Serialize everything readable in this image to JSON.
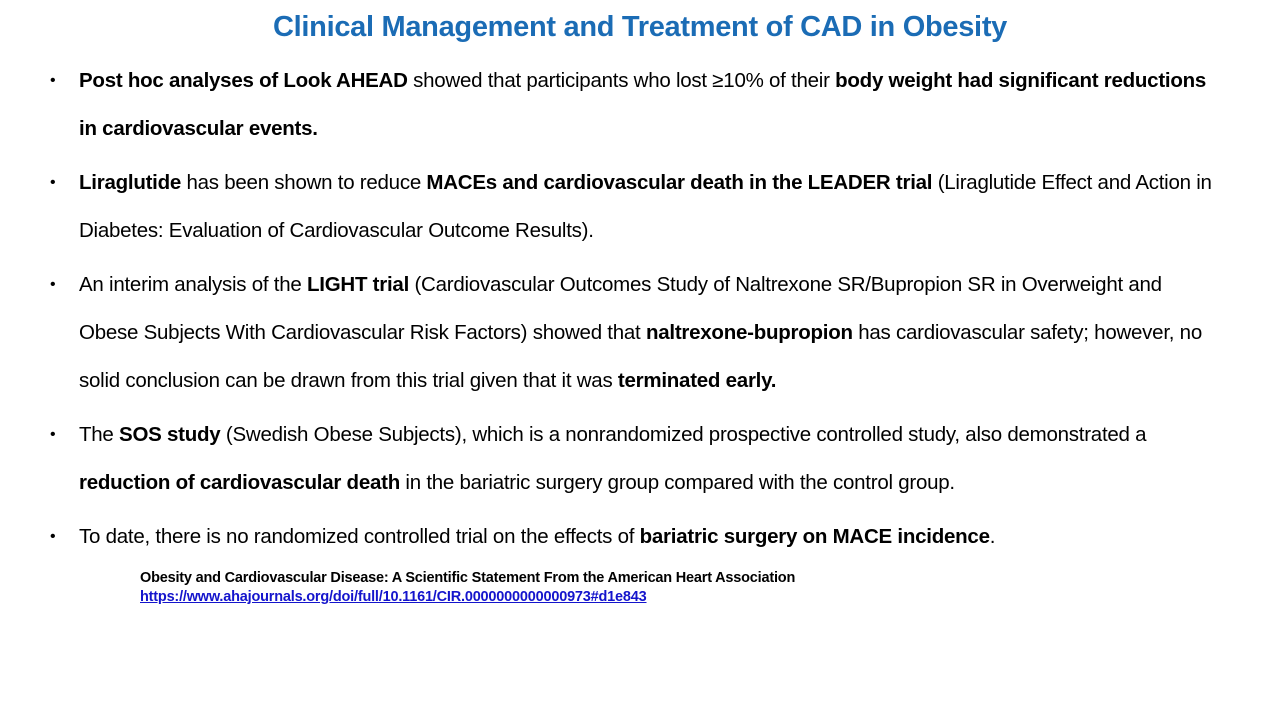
{
  "slide": {
    "title": "Clinical Management and Treatment of CAD in Obesity",
    "title_color": "#1b6cb5"
  },
  "bullet_marker": "•",
  "bullets": [
    {
      "segments": [
        {
          "text": "Post hoc analyses of Look AHEAD",
          "bold": true
        },
        {
          "text": " showed that participants who lost ≥10% of their ",
          "bold": false
        },
        {
          "text": "body weight had significant reductions in cardiovascular events.",
          "bold": true
        }
      ]
    },
    {
      "segments": [
        {
          "text": "Liraglutide",
          "bold": true
        },
        {
          "text": " has been shown to reduce ",
          "bold": false
        },
        {
          "text": "MACEs and cardiovascular death in the LEADER trial",
          "bold": true
        },
        {
          "text": " (Liraglutide Effect and Action in Diabetes: Evaluation of Cardiovascular Outcome Results).",
          "bold": false
        }
      ]
    },
    {
      "segments": [
        {
          "text": "An interim analysis of the ",
          "bold": false
        },
        {
          "text": "LIGHT trial",
          "bold": true
        },
        {
          "text": " (Cardiovascular Outcomes Study of Naltrexone SR/Bupropion SR in Overweight and Obese Subjects With Cardiovascular Risk Factors) showed that ",
          "bold": false
        },
        {
          "text": "naltrexone-bupropion",
          "bold": true
        },
        {
          "text": " has cardiovascular safety; however, no solid conclusion can be drawn from this trial given that it was ",
          "bold": false
        },
        {
          "text": "terminated early.",
          "bold": true
        }
      ]
    },
    {
      "segments": [
        {
          "text": " The ",
          "bold": false
        },
        {
          "text": "SOS study",
          "bold": true
        },
        {
          "text": " (Swedish Obese Subjects), which is a nonrandomized prospective controlled study, also demonstrated a ",
          "bold": false
        },
        {
          "text": "reduction of cardiovascular death",
          "bold": true
        },
        {
          "text": " in the bariatric surgery group compared with the control group.",
          "bold": false
        }
      ]
    },
    {
      "segments": [
        {
          "text": "To date, there is no randomized controlled trial on the effects of ",
          "bold": false
        },
        {
          "text": "bariatric surgery on MACE incidence",
          "bold": true
        },
        {
          "text": ".",
          "bold": false
        }
      ]
    }
  ],
  "footer": {
    "citation": "Obesity and Cardiovascular Disease: A Scientific Statement From the American Heart Association",
    "link": "https://www.ahajournals.org/doi/full/10.1161/CIR.0000000000000973#d1e843",
    "link_color": "#1414cc"
  }
}
